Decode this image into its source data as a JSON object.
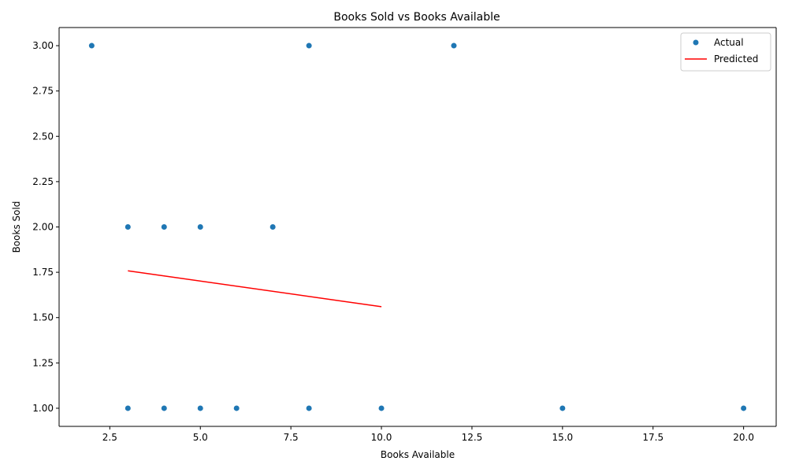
{
  "chart_data": {
    "type": "scatter",
    "title": "Books Sold vs Books Available",
    "xlabel": "Books Available",
    "ylabel": "Books Sold",
    "xlim": [
      1.1,
      20.9
    ],
    "ylim": [
      0.9,
      3.1
    ],
    "xticks": [
      "2.5",
      "5.0",
      "7.5",
      "10.0",
      "12.5",
      "15.0",
      "17.5",
      "20.0"
    ],
    "xtick_values": [
      2.5,
      5.0,
      7.5,
      10.0,
      12.5,
      15.0,
      17.5,
      20.0
    ],
    "yticks": [
      "1.00",
      "1.25",
      "1.50",
      "1.75",
      "2.00",
      "2.25",
      "2.50",
      "2.75",
      "3.00"
    ],
    "ytick_values": [
      1.0,
      1.25,
      1.5,
      1.75,
      2.0,
      2.25,
      2.5,
      2.75,
      3.0
    ],
    "grid": false,
    "legend_position": "top-right",
    "series": [
      {
        "name": "Actual",
        "kind": "scatter",
        "color": "#1f77b4",
        "points": [
          {
            "x": 2,
            "y": 3
          },
          {
            "x": 8,
            "y": 3
          },
          {
            "x": 12,
            "y": 3
          },
          {
            "x": 3,
            "y": 2
          },
          {
            "x": 4,
            "y": 2
          },
          {
            "x": 5,
            "y": 2
          },
          {
            "x": 7,
            "y": 2
          },
          {
            "x": 3,
            "y": 1
          },
          {
            "x": 4,
            "y": 1
          },
          {
            "x": 5,
            "y": 1
          },
          {
            "x": 6,
            "y": 1
          },
          {
            "x": 8,
            "y": 1
          },
          {
            "x": 10,
            "y": 1
          },
          {
            "x": 15,
            "y": 1
          },
          {
            "x": 20,
            "y": 1
          }
        ]
      },
      {
        "name": "Predicted",
        "kind": "line",
        "color": "#ff0000",
        "points": [
          {
            "x": 3,
            "y": 1.758
          },
          {
            "x": 10,
            "y": 1.56
          }
        ]
      }
    ]
  }
}
